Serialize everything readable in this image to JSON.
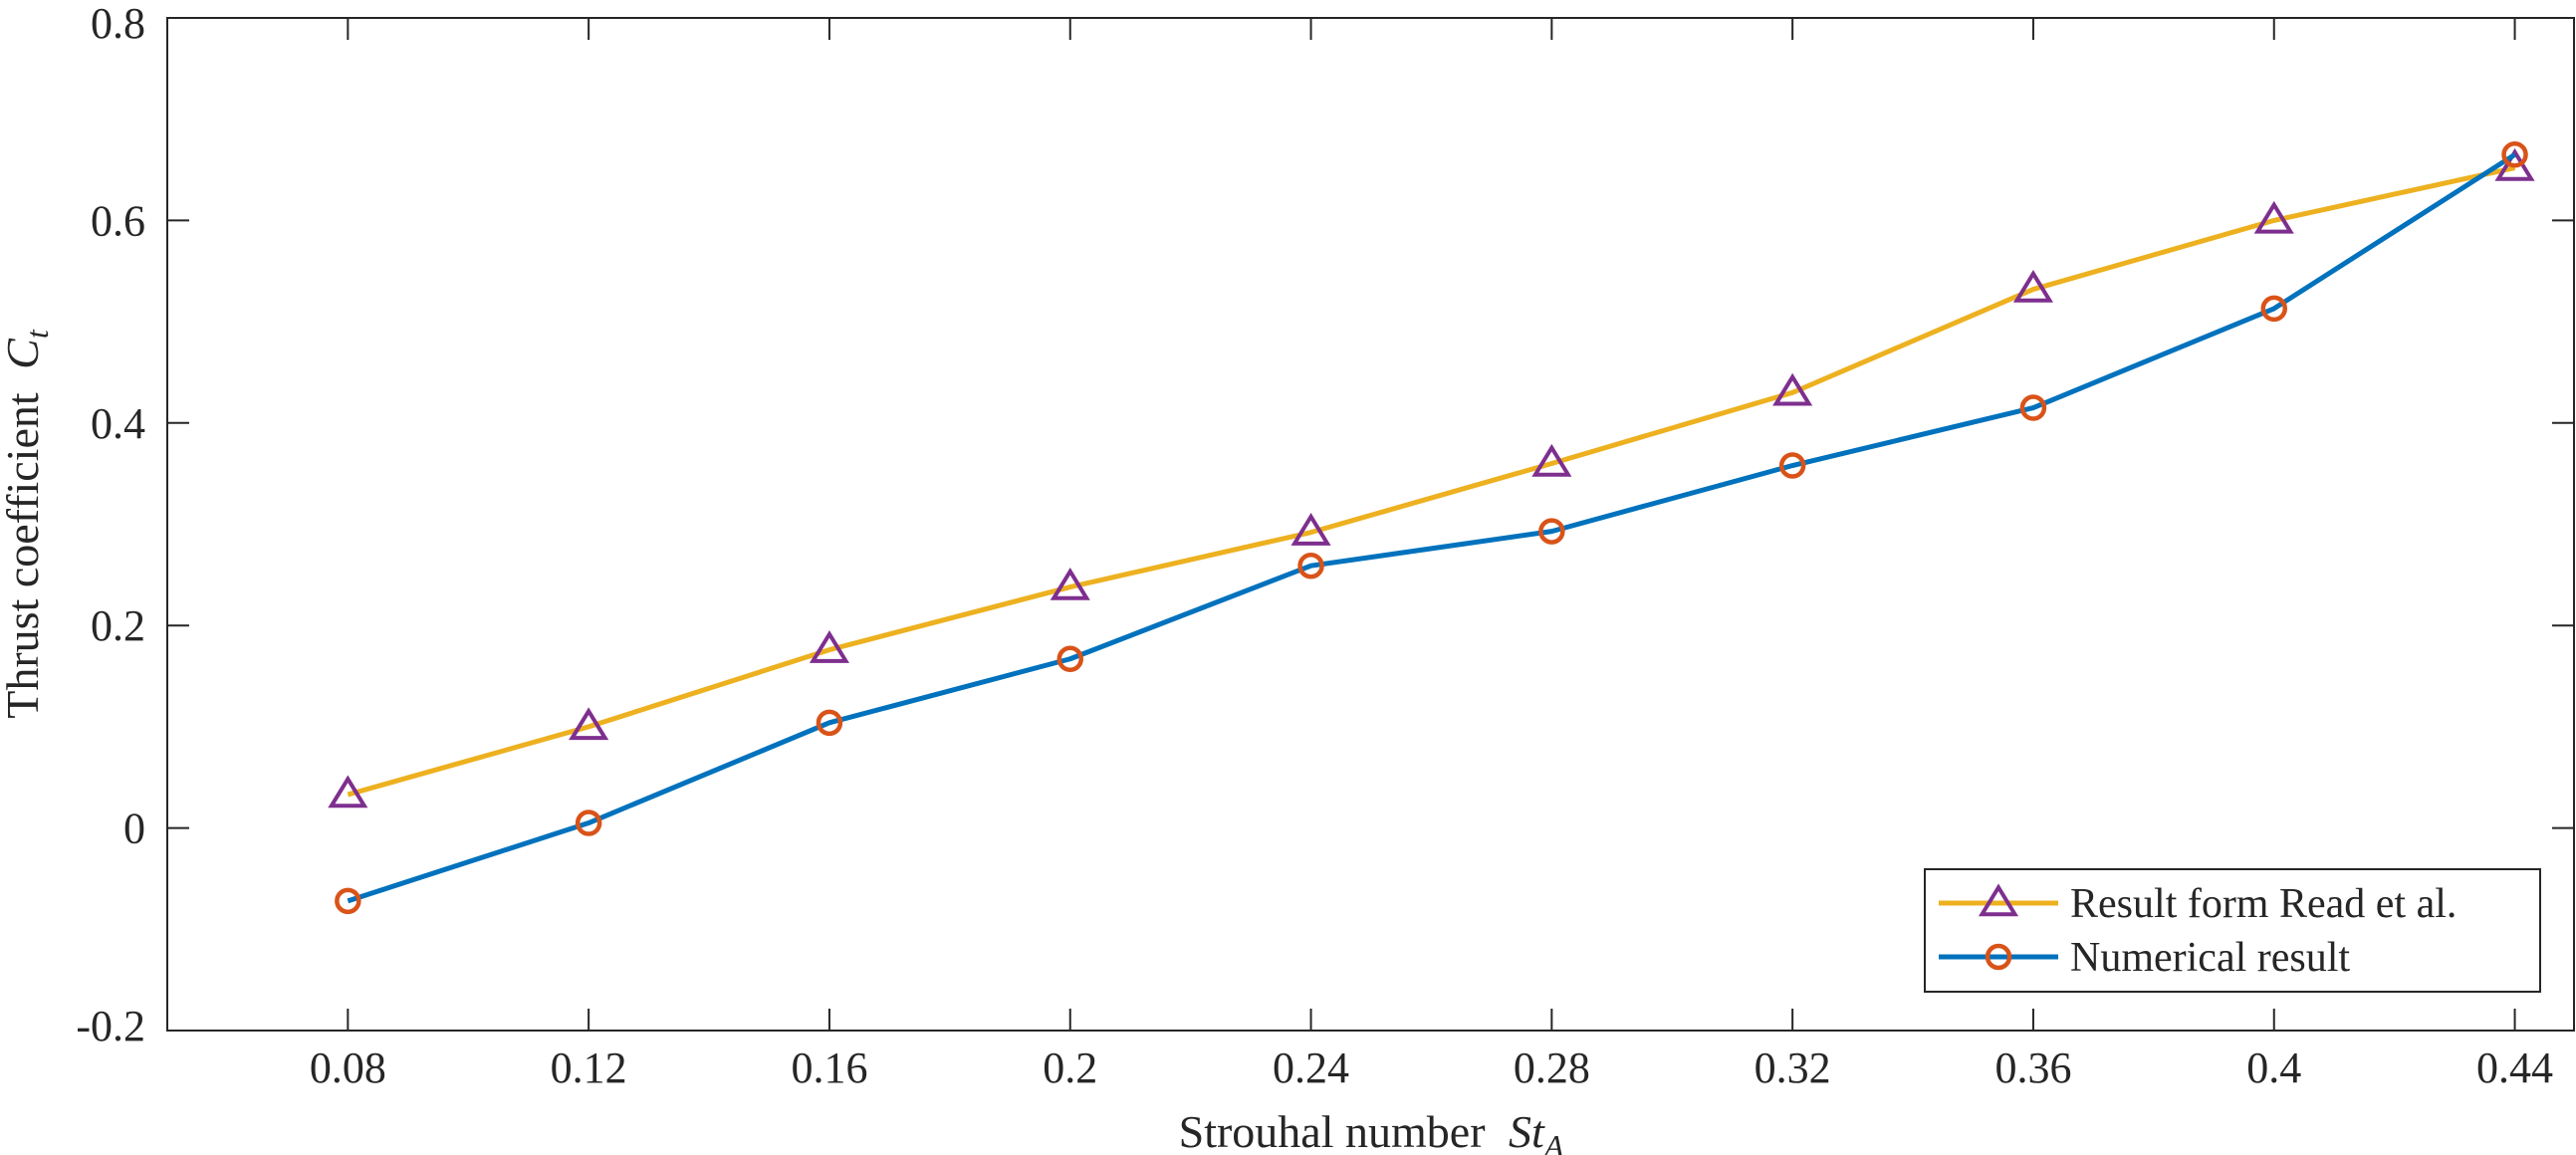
{
  "chart_data": {
    "type": "line",
    "title": "",
    "xlabel": "Strouhal number",
    "xlabel_math": "St",
    "xlabel_math_sub": "A",
    "ylabel": "Thrust coefficient",
    "ylabel_math": "C",
    "ylabel_math_sub": "t",
    "x": [
      0.08,
      0.12,
      0.16,
      0.2,
      0.24,
      0.28,
      0.32,
      0.36,
      0.4,
      0.44
    ],
    "x_tick_labels": [
      "0.08",
      "0.12",
      "0.16",
      "0.2",
      "0.24",
      "0.28",
      "0.32",
      "0.36",
      "0.4",
      "0.44"
    ],
    "y_tick_values": [
      -0.2,
      0,
      0.2,
      0.4,
      0.6,
      0.8
    ],
    "y_tick_labels": [
      "-0.2",
      "0",
      "0.2",
      "0.4",
      "0.6",
      "0.8"
    ],
    "xlim": [
      0.05,
      0.45
    ],
    "ylim": [
      -0.2,
      0.8
    ],
    "grid": false,
    "legend_position": "bottom-right",
    "series": [
      {
        "name": "Result form Read et al.",
        "marker": "triangle",
        "line_color": "#EDB120",
        "marker_color": "#7E2F8E",
        "values": [
          0.033,
          0.1,
          0.176,
          0.238,
          0.292,
          0.36,
          0.43,
          0.532,
          0.6,
          0.652
        ]
      },
      {
        "name": "Numerical result",
        "marker": "circle",
        "line_color": "#0072BD",
        "marker_color": "#D95319",
        "values": [
          -0.072,
          0.005,
          0.104,
          0.167,
          0.259,
          0.293,
          0.358,
          0.415,
          0.513,
          0.665
        ]
      }
    ]
  }
}
